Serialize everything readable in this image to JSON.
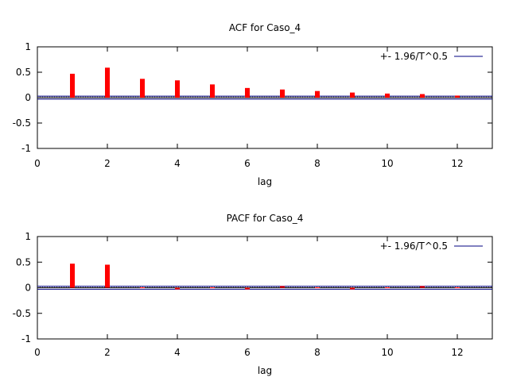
{
  "chart_data": [
    {
      "type": "bar",
      "title": "ACF for Caso_4",
      "xlabel": "lag",
      "ylabel": "",
      "xlim": [
        0,
        13
      ],
      "ylim": [
        -1,
        1
      ],
      "xticks": [
        "0",
        "2",
        "4",
        "6",
        "8",
        "10",
        "12"
      ],
      "yticks": [
        "1",
        "0.5",
        "0",
        "-0.5",
        "-1"
      ],
      "legend": "+- 1.96/T^0.5",
      "legend_position": "top-right",
      "confidence_band": 0.03,
      "lags": [
        1,
        2,
        3,
        4,
        5,
        6,
        7,
        8,
        9,
        10,
        11,
        12
      ],
      "values": [
        0.47,
        0.59,
        0.37,
        0.34,
        0.26,
        0.19,
        0.16,
        0.13,
        0.1,
        0.08,
        0.07,
        0.04
      ]
    },
    {
      "type": "bar",
      "title": "PACF for Caso_4",
      "xlabel": "lag",
      "ylabel": "",
      "xlim": [
        0,
        13
      ],
      "ylim": [
        -1,
        1
      ],
      "xticks": [
        "0",
        "2",
        "4",
        "6",
        "8",
        "10",
        "12"
      ],
      "yticks": [
        "1",
        "0.5",
        "0",
        "-0.5",
        "-1"
      ],
      "legend": "+- 1.96/T^0.5",
      "legend_position": "top-right",
      "confidence_band": 0.03,
      "lags": [
        1,
        2,
        3,
        4,
        5,
        6,
        7,
        8,
        9,
        10,
        11,
        12
      ],
      "values": [
        0.47,
        0.45,
        0.0,
        -0.03,
        0.0,
        -0.01,
        0.01,
        0.0,
        -0.01,
        0.0,
        0.01,
        0.0
      ]
    }
  ],
  "colors": {
    "bar": "#ff0000",
    "band": "#000080",
    "zero_line": "#000000",
    "zero_dotted": "#888888"
  }
}
